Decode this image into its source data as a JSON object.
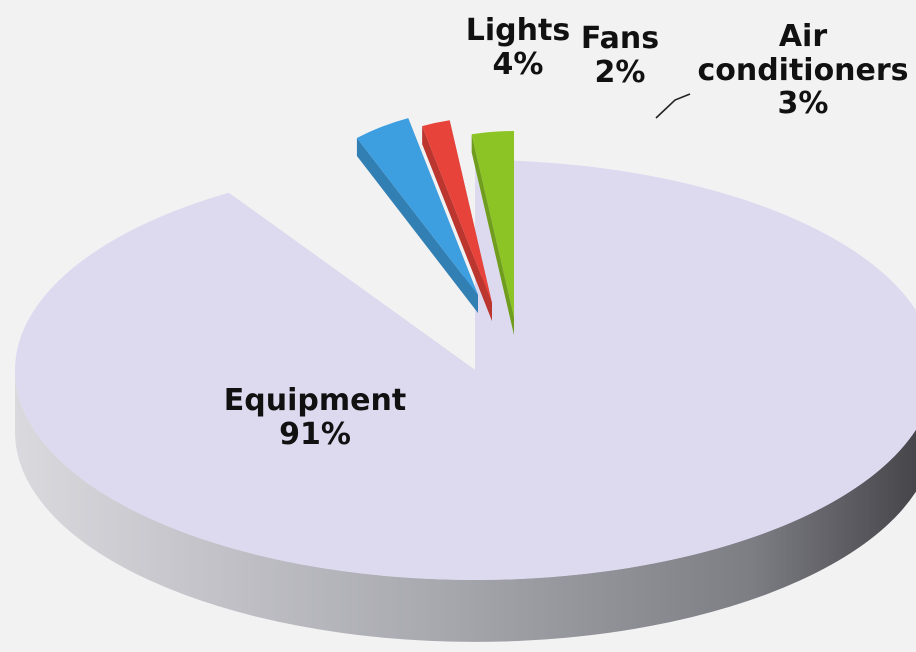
{
  "chart_data": {
    "type": "pie",
    "style": "3d-exploded",
    "slices": [
      {
        "label": "Equipment",
        "value": 91,
        "value_text": "91%",
        "color": "#dddaf0"
      },
      {
        "label": "Lights",
        "value": 4,
        "value_text": "4%",
        "color": "#3e9fe0"
      },
      {
        "label": "Fans",
        "value": 2,
        "value_text": "2%",
        "color": "#e8433a"
      },
      {
        "label": "Air conditioners",
        "value": 3,
        "value_text": "3%",
        "color": "#8cc425"
      }
    ],
    "colors": {
      "background": "#f2f2f3"
    }
  }
}
